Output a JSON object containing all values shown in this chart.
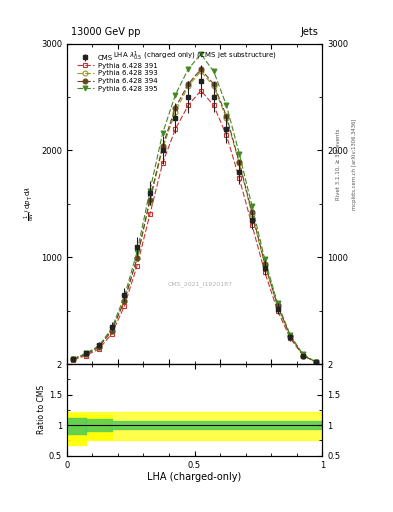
{
  "title_top": "13000 GeV pp",
  "title_right": "Jets",
  "plot_title": "LHA $\\lambda^1_{0.5}$ (charged only) (CMS jet substructure)",
  "xlabel": "LHA (charged-only)",
  "ylabel_ratio": "Ratio to CMS",
  "right_label": "Rivet 3.1.10, ≥ 3M events",
  "right_label2": "mcplots.cern.ch [arXiv:1306.3436]",
  "watermark": "CMS_2021_I1920187",
  "x_lha": [
    0.025,
    0.075,
    0.125,
    0.175,
    0.225,
    0.275,
    0.325,
    0.375,
    0.425,
    0.475,
    0.525,
    0.575,
    0.625,
    0.675,
    0.725,
    0.775,
    0.825,
    0.875,
    0.925,
    0.975
  ],
  "cms_values": [
    0.05,
    0.1,
    0.18,
    0.35,
    0.65,
    1.1,
    1.6,
    2.0,
    2.3,
    2.5,
    2.65,
    2.5,
    2.2,
    1.8,
    1.35,
    0.9,
    0.52,
    0.25,
    0.08,
    0.02
  ],
  "cms_errors": [
    0.015,
    0.015,
    0.025,
    0.04,
    0.06,
    0.09,
    0.11,
    0.13,
    0.14,
    0.15,
    0.15,
    0.14,
    0.13,
    0.11,
    0.09,
    0.07,
    0.05,
    0.03,
    0.015,
    0.008
  ],
  "p391_values": [
    0.04,
    0.08,
    0.14,
    0.28,
    0.54,
    0.92,
    1.4,
    1.88,
    2.2,
    2.42,
    2.56,
    2.42,
    2.14,
    1.74,
    1.3,
    0.86,
    0.5,
    0.24,
    0.08,
    0.02
  ],
  "p393_values": [
    0.05,
    0.09,
    0.16,
    0.31,
    0.59,
    0.99,
    1.52,
    2.02,
    2.36,
    2.6,
    2.74,
    2.6,
    2.3,
    1.88,
    1.4,
    0.93,
    0.54,
    0.26,
    0.08,
    0.02
  ],
  "p394_values": [
    0.05,
    0.09,
    0.16,
    0.31,
    0.59,
    0.99,
    1.54,
    2.04,
    2.4,
    2.62,
    2.76,
    2.62,
    2.32,
    1.89,
    1.42,
    0.94,
    0.55,
    0.26,
    0.08,
    0.02
  ],
  "p395_values": [
    0.05,
    0.1,
    0.17,
    0.33,
    0.63,
    1.05,
    1.62,
    2.16,
    2.52,
    2.76,
    2.9,
    2.74,
    2.42,
    1.97,
    1.48,
    0.98,
    0.57,
    0.27,
    0.09,
    0.02
  ],
  "cms_color": "#222222",
  "p391_color": "#cc3333",
  "p393_color": "#999922",
  "p394_color": "#664422",
  "p395_color": "#448822",
  "xlim": [
    0.0,
    1.0
  ],
  "ylim_main": [
    0,
    3000
  ],
  "ylim_ratio": [
    0.5,
    2.0
  ],
  "yticks_ratio": [
    0.5,
    1.0,
    1.5,
    2.0
  ],
  "scale": 1000,
  "ratio_yellow_lo": 0.75,
  "ratio_yellow_hi": 1.22,
  "ratio_green_lo": 0.93,
  "ratio_green_hi": 1.07,
  "ratio_yellow_first_lo": 0.68,
  "ratio_yellow_first_hi": 1.18,
  "ratio_green_first_lo": 0.86,
  "ratio_green_first_hi": 1.12
}
